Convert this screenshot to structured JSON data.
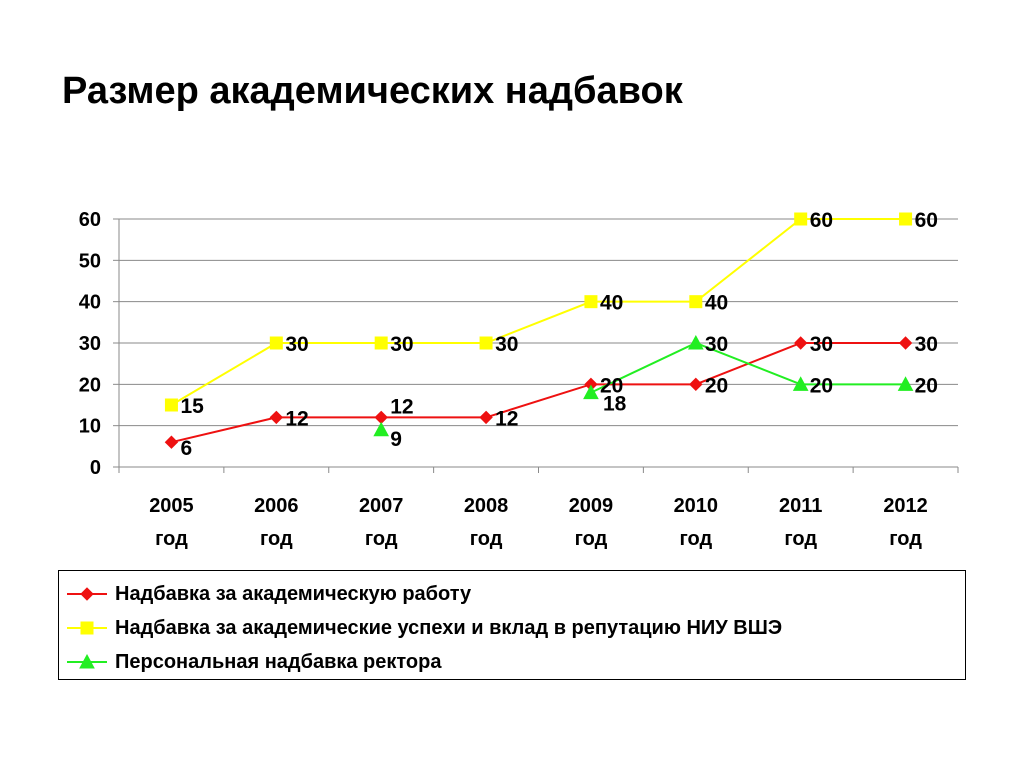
{
  "slide": {
    "title": "Размер академических надбавок"
  },
  "chart_data": {
    "type": "line",
    "title": "",
    "xlabel": "",
    "ylabel": "",
    "ylim": [
      0,
      60
    ],
    "yticks": [
      "0",
      "10",
      "20",
      "30",
      "40",
      "50",
      "60"
    ],
    "grid": true,
    "legend_position": "bottom",
    "categories": [
      [
        "2005",
        "год"
      ],
      [
        "2006",
        "год"
      ],
      [
        "2007",
        "год"
      ],
      [
        "2008",
        "год"
      ],
      [
        "2009",
        "год"
      ],
      [
        "2010",
        "год"
      ],
      [
        "2011",
        "год"
      ],
      [
        "2012",
        "год"
      ]
    ],
    "series": [
      {
        "name": "Надбавка за академическую работу",
        "color": "#ee1111",
        "marker": "diamond",
        "values": [
          6,
          12,
          12,
          12,
          20,
          20,
          30,
          30
        ],
        "labels": [
          "6",
          "12",
          "12",
          "12",
          "20",
          "20",
          "30",
          "30"
        ]
      },
      {
        "name": "Надбавка за академические успехи и вклад в репутацию НИУ ВШЭ",
        "color": "#ffff00",
        "marker": "square",
        "values": [
          15,
          30,
          30,
          30,
          40,
          40,
          60,
          60
        ],
        "labels": [
          "15",
          "30",
          "30",
          "30",
          "40",
          "40",
          "60",
          "60"
        ]
      },
      {
        "name": "Персональная надбавка ректора",
        "color": "#22ee22",
        "marker": "triangle",
        "values": [
          null,
          null,
          9,
          null,
          18,
          30,
          20,
          20
        ],
        "labels": [
          null,
          null,
          "9",
          null,
          "18",
          "30",
          "20",
          "20"
        ]
      }
    ]
  }
}
